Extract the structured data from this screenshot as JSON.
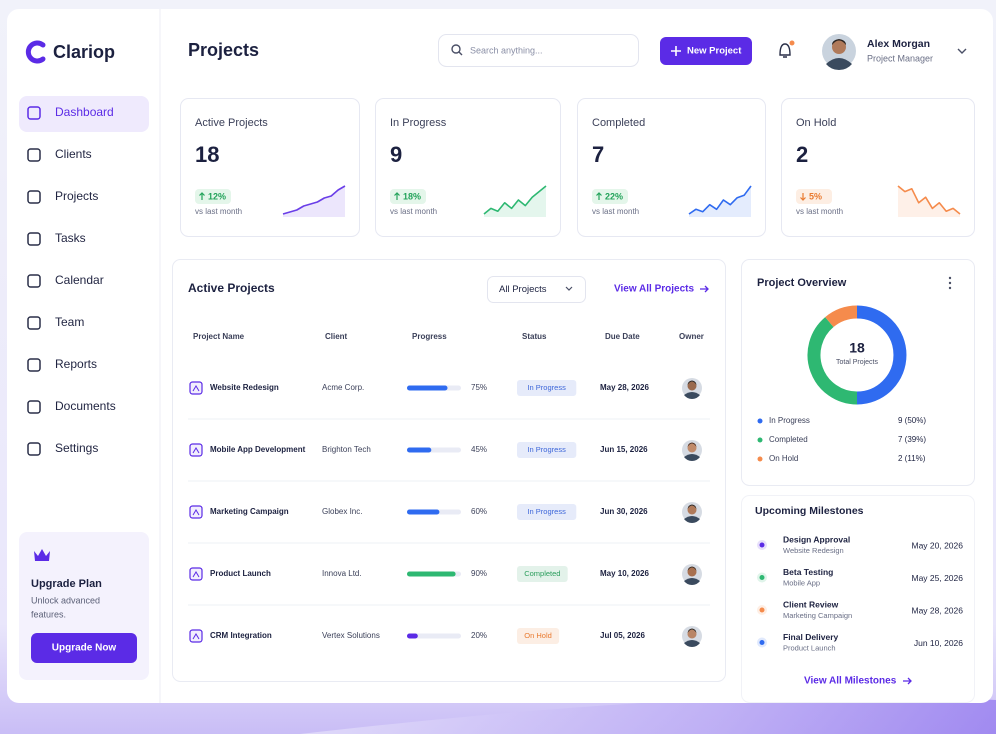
{
  "sidebar": {
    "brand": "Clariop",
    "nav": [
      "Dashboard",
      "Clients",
      "Projects",
      "Tasks",
      "Calendar",
      "Team",
      "Reports",
      "Documents",
      "Settings"
    ],
    "upgrade": {
      "title": "Upgrade Plan",
      "text_lines": [
        "Unlock advanced",
        "features."
      ],
      "button": "Upgrade Now"
    }
  },
  "header": {
    "title": "Projects",
    "search": "Search anything...",
    "new_button": "New Project",
    "user": {
      "name": "Alex Morgan",
      "role": "Project Manager"
    }
  },
  "stats": [
    {
      "label": "Active Projects",
      "value": 18,
      "change": "12%",
      "direction": "up",
      "note": "vs last month",
      "color": "#6a3ee8",
      "trend": [
        2,
        2.5,
        3,
        4,
        4.5,
        5,
        6,
        6.5,
        8,
        9
      ]
    },
    {
      "label": "In Progress",
      "value": 9,
      "change": "18%",
      "direction": "up",
      "note": "vs last month",
      "color": "#2eb872",
      "trend": [
        3,
        4,
        3.5,
        5,
        4,
        5.5,
        4.5,
        6,
        7,
        8
      ]
    },
    {
      "label": "Completed",
      "value": 7,
      "change": "22%",
      "direction": "up",
      "note": "vs last month",
      "color": "#2f6bf0",
      "trend": [
        2,
        3,
        2.5,
        4,
        3,
        5,
        4,
        5.5,
        6,
        8
      ]
    },
    {
      "label": "On Hold",
      "value": 2,
      "change": "5%",
      "direction": "down",
      "note": "vs last month",
      "color": "#f58b4c",
      "trend": [
        8,
        7,
        7.5,
        5,
        6,
        4,
        5,
        3.5,
        4,
        3
      ]
    }
  ],
  "active_projects": {
    "title": "Active Projects",
    "filter": "All Projects",
    "view_all": "View All Projects",
    "columns": [
      "Project Name",
      "Client",
      "Progress",
      "Status",
      "Due Date",
      "Owner"
    ],
    "rows": [
      {
        "name": "Website Redesign",
        "client": "Acme Corp.",
        "progress": 75,
        "progress_label": "75%",
        "bar_color": "#2f6bf0",
        "status": "In Progress",
        "status_color": "#3d66d9",
        "due": "May 28, 2026"
      },
      {
        "name": "Mobile App Development",
        "client": "Brighton Tech",
        "progress": 45,
        "progress_label": "45%",
        "bar_color": "#2f6bf0",
        "status": "In Progress",
        "status_color": "#3d66d9",
        "due": "Jun 15, 2026"
      },
      {
        "name": "Marketing Campaign",
        "client": "Globex Inc.",
        "progress": 60,
        "progress_label": "60%",
        "bar_color": "#2f6bf0",
        "status": "In Progress",
        "status_color": "#3d66d9",
        "due": "Jun 30, 2026"
      },
      {
        "name": "Product Launch",
        "client": "Innova Ltd.",
        "progress": 90,
        "progress_label": "90%",
        "bar_color": "#2eb872",
        "status": "Completed",
        "status_color": "#2a9d5c",
        "due": "May 10, 2026"
      },
      {
        "name": "CRM Integration",
        "client": "Vertex Solutions",
        "progress": 20,
        "progress_label": "20%",
        "bar_color": "#5b2be6",
        "status": "On Hold",
        "status_color": "#e97a2f",
        "due": "Jul 05, 2026"
      }
    ]
  },
  "overview": {
    "title": "Project Overview",
    "total": 18,
    "total_label": "Total Projects",
    "segments": [
      {
        "name": "In Progress",
        "count": 9,
        "label": "9 (50%)",
        "color": "#2f6bf0"
      },
      {
        "name": "Completed",
        "count": 7,
        "label": "7 (39%)",
        "color": "#2eb872"
      },
      {
        "name": "On Hold",
        "count": 2,
        "label": "2 (11%)",
        "color": "#f58b4c"
      }
    ]
  },
  "milestones": {
    "title": "Upcoming Milestones",
    "view_all": "View All Milestones",
    "items": [
      {
        "name": "Design Approval",
        "project": "Website Redesign",
        "date": "May 20, 2026",
        "color": "#5b2be6"
      },
      {
        "name": "Beta Testing",
        "project": "Mobile App",
        "date": "May 25, 2026",
        "color": "#2eb872"
      },
      {
        "name": "Client Review",
        "project": "Marketing Campaign",
        "date": "May 28, 2026",
        "color": "#f58b4c"
      },
      {
        "name": "Final Delivery",
        "project": "Product Launch",
        "date": "Jun 10, 2026",
        "color": "#2f6bf0"
      }
    ]
  }
}
